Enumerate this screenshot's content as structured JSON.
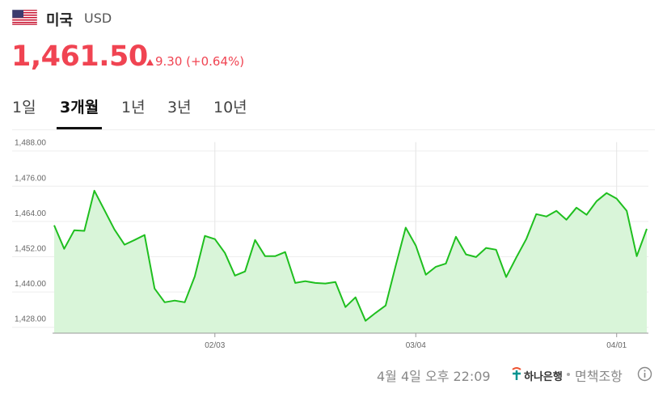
{
  "header": {
    "country": "미국",
    "currency": "USD",
    "price": "1,461.50",
    "change": "9.30 (+0.64%)"
  },
  "tabs": {
    "items": [
      "1일",
      "3개월",
      "1년",
      "3년",
      "10년"
    ],
    "selected": 1
  },
  "chart_data": {
    "type": "area",
    "categories": [
      null,
      null,
      null,
      null,
      null,
      null,
      null,
      null,
      null,
      null,
      null,
      null,
      null,
      null,
      null,
      null,
      "02/03",
      null,
      null,
      null,
      null,
      null,
      null,
      null,
      null,
      null,
      null,
      null,
      null,
      null,
      null,
      null,
      null,
      null,
      null,
      null,
      "03/04",
      null,
      null,
      null,
      null,
      null,
      null,
      null,
      null,
      null,
      null,
      null,
      null,
      null,
      null,
      null,
      null,
      null,
      null,
      null,
      "04/01",
      null,
      null,
      null
    ],
    "series": [
      {
        "color": "#1fbf1f",
        "fill": "#d9f5d9",
        "values": [
          1462.7,
          1454.7,
          1461.0,
          1460.8,
          1474.5,
          1467.9,
          1461.3,
          1456.1,
          1457.7,
          1459.4,
          1441.2,
          1436.5,
          1437.1,
          1436.5,
          1445.3,
          1459.1,
          1458.0,
          1453.3,
          1445.6,
          1447.0,
          1457.7,
          1452.2,
          1452.2,
          1453.6,
          1443.1,
          1443.7,
          1443.1,
          1442.9,
          1443.4,
          1434.9,
          1438.2,
          1430.2,
          1432.9,
          1435.4,
          1448.9,
          1461.9,
          1455.8,
          1445.9,
          1448.6,
          1449.7,
          1458.8,
          1452.8,
          1451.9,
          1455.0,
          1454.4,
          1445.1,
          1451.7,
          1458.0,
          1466.5,
          1465.7,
          1467.6,
          1464.6,
          1468.7,
          1466.3,
          1470.9,
          1473.7,
          1471.8,
          1467.6,
          1452.2,
          1461.5
        ]
      }
    ],
    "ylim": [
      1426,
      1491
    ],
    "yticks": [
      {
        "value": 1428,
        "label": "1,428.00"
      },
      {
        "value": 1440,
        "label": "1,440.00"
      },
      {
        "value": 1452,
        "label": "1,452.00"
      },
      {
        "value": 1464,
        "label": "1,464.00"
      },
      {
        "value": 1476,
        "label": "1,476.00"
      },
      {
        "value": 1488,
        "label": "1,488.00"
      }
    ],
    "grid": true
  },
  "footer": {
    "timestamp": "4월 4일 오후 22:09",
    "provider": "하나은행",
    "disclaimer": "면책조항"
  }
}
